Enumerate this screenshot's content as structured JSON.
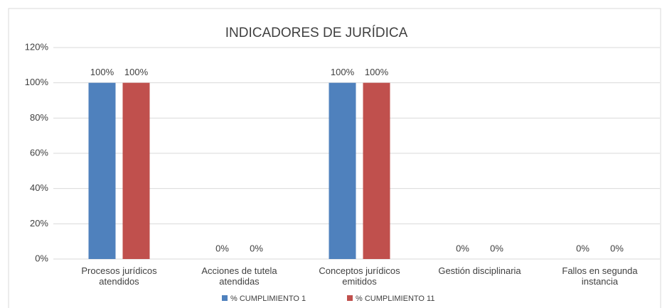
{
  "chart_data": {
    "type": "bar",
    "title": "INDICADORES DE JURÍDICA",
    "categories": [
      "Procesos jurídicos atendidos",
      "Acciones de tutela atendidas",
      "Conceptos jurídicos emitidos",
      "Gestión disciplinaria",
      "Fallos en segunda instancia"
    ],
    "series": [
      {
        "name": "% CUMPLIMIENTO 1",
        "color": "#4f81bd",
        "values": [
          100,
          0,
          100,
          0,
          0
        ],
        "value_labels": [
          "100%",
          "0%",
          "100%",
          "0%",
          "0%"
        ]
      },
      {
        "name": "% CUMPLIMIENTO 11",
        "color": "#c0504d",
        "values": [
          100,
          0,
          100,
          0,
          0
        ],
        "value_labels": [
          "100%",
          "0%",
          "100%",
          "0%",
          "0%"
        ]
      }
    ],
    "ylim": [
      0,
      120
    ],
    "yticks": [
      {
        "value": 0,
        "label": "0%"
      },
      {
        "value": 20,
        "label": "20%"
      },
      {
        "value": 40,
        "label": "40%"
      },
      {
        "value": 60,
        "label": "60%"
      },
      {
        "value": 80,
        "label": "80%"
      },
      {
        "value": 100,
        "label": "100%"
      },
      {
        "value": 120,
        "label": "120%"
      }
    ],
    "grid": true,
    "legend": "bottom"
  }
}
